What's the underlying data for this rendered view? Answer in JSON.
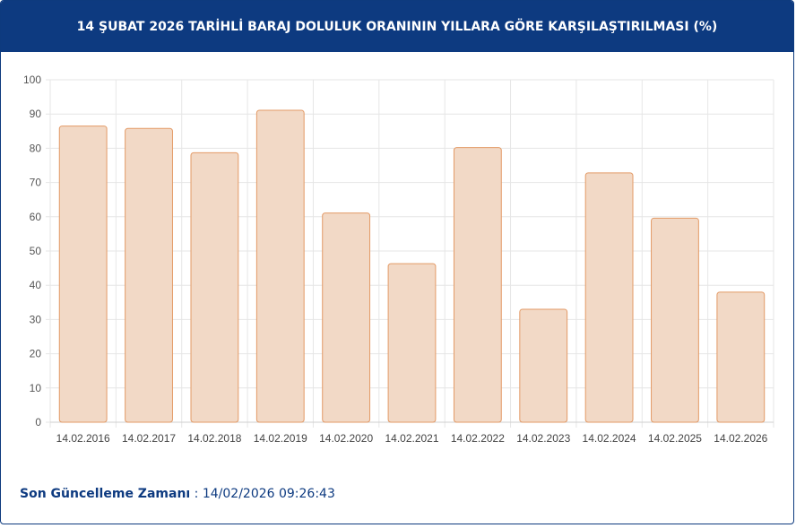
{
  "header": {
    "title": "14 ŞUBAT 2026 TARİHLİ BARAJ DOLULUK ORANININ YILLARA GÖRE KARŞILAŞTIRILMASI (%)"
  },
  "footer": {
    "label": "Son Güncelleme Zamanı",
    "separator": " : ",
    "value": "14/02/2026 09:26:43"
  },
  "colors": {
    "header_bg": "#0d3a80",
    "bar_fill": "#f2d9c6",
    "bar_stroke": "#e39a66",
    "grid": "#e6e6e6"
  },
  "chart_data": {
    "type": "bar",
    "categories": [
      "14.02.2016",
      "14.02.2017",
      "14.02.2018",
      "14.02.2019",
      "14.02.2020",
      "14.02.2021",
      "14.02.2022",
      "14.02.2023",
      "14.02.2024",
      "14.02.2025",
      "14.02.2026"
    ],
    "values": [
      86.5,
      85.8,
      78.7,
      91.1,
      61.1,
      46.3,
      80.2,
      33.0,
      72.8,
      59.6,
      38.0
    ],
    "yticks": [
      0,
      10,
      20,
      30,
      40,
      50,
      60,
      70,
      80,
      90,
      100
    ],
    "ylim": [
      0,
      100
    ],
    "grid": true
  }
}
